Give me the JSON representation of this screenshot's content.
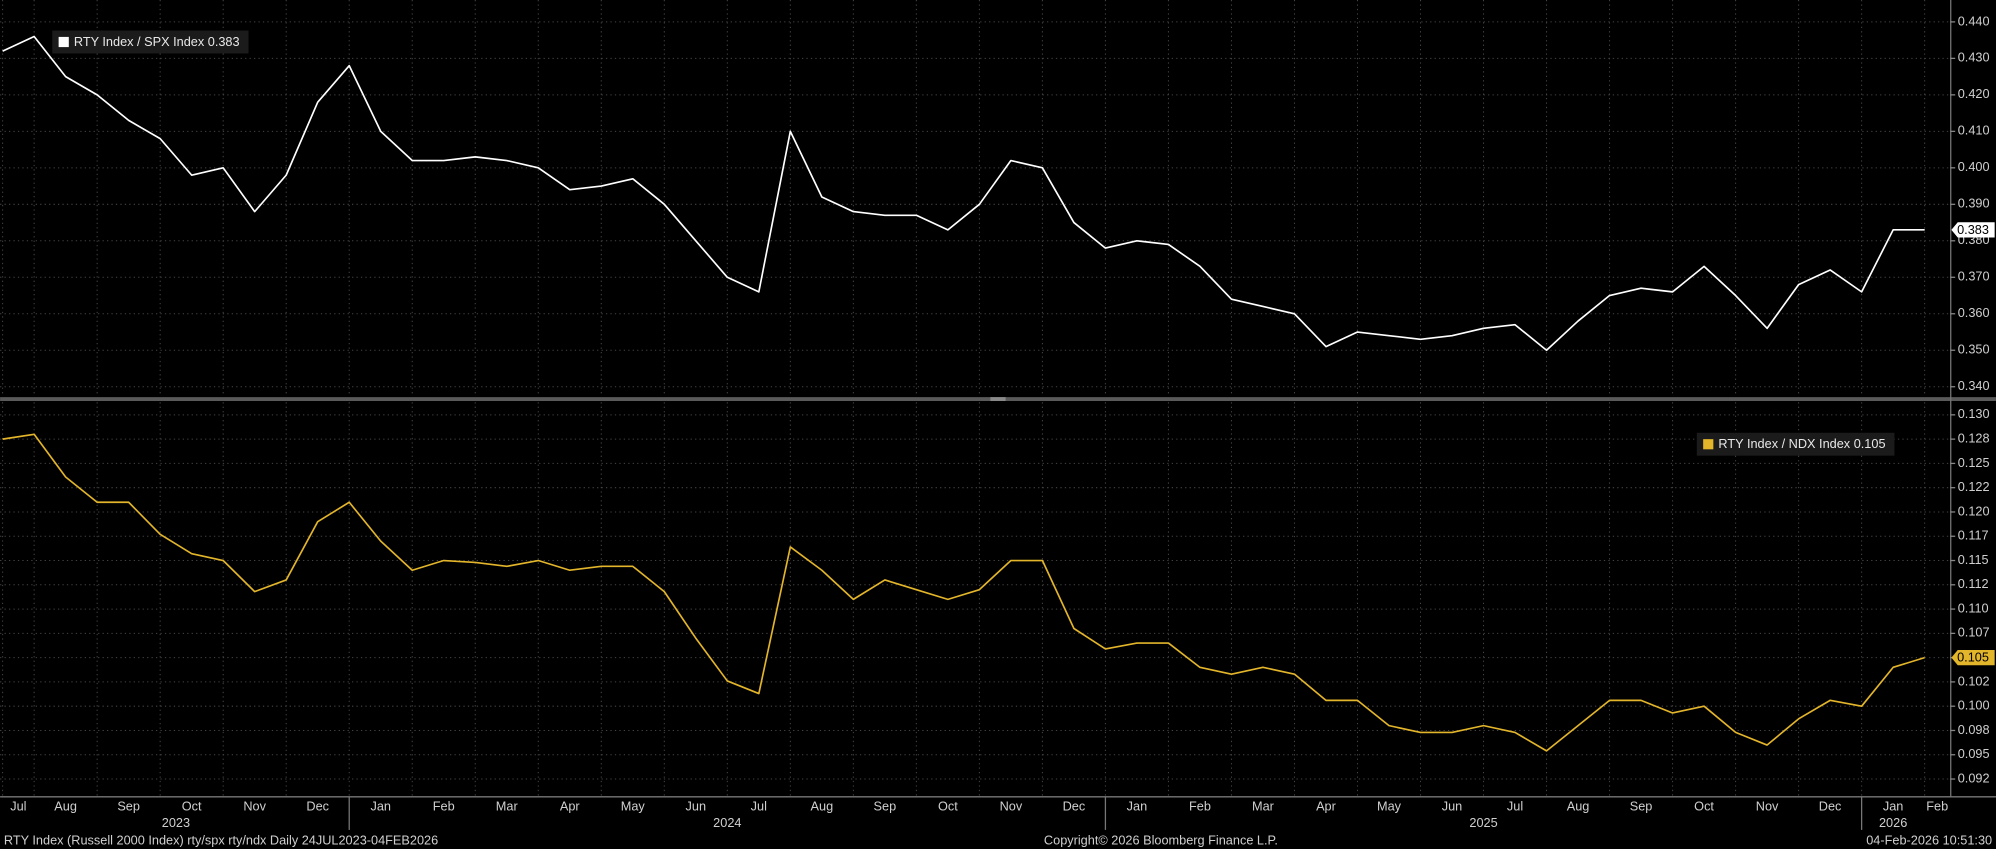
{
  "chart_data": {
    "type": "line",
    "categories": [
      "Jul",
      "Aug",
      null,
      "Sep",
      null,
      "Oct",
      null,
      "Nov",
      null,
      "Dec",
      null,
      "Jan",
      null,
      "Feb",
      null,
      "Mar",
      null,
      "Apr",
      null,
      "May",
      null,
      "Jun",
      null,
      "Jul",
      null,
      "Aug",
      null,
      "Sep",
      null,
      "Oct",
      null,
      "Nov",
      null,
      "Dec",
      null,
      "Jan",
      null,
      "Feb",
      null,
      "Mar",
      null,
      "Apr",
      null,
      "May",
      null,
      "Jun",
      null,
      "Jul",
      null,
      "Aug",
      null,
      "Sep",
      null,
      "Oct",
      null,
      "Nov",
      null,
      "Dec",
      null,
      "Jan",
      null,
      "Feb"
    ],
    "years": [
      "2023",
      "2024",
      "2025",
      "2026"
    ],
    "grid": true,
    "series": [
      {
        "name": "RTY Index / SPX Index 0.383",
        "color": "#ffffff",
        "ylim": [
          0.3375,
          0.446
        ],
        "yticks": [
          {
            "value": 0.34,
            "label": "0.340"
          },
          {
            "value": 0.35,
            "label": "0.350"
          },
          {
            "value": 0.36,
            "label": "0.360"
          },
          {
            "value": 0.37,
            "label": "0.370"
          },
          {
            "value": 0.38,
            "label": "0.380"
          },
          {
            "value": 0.39,
            "label": "0.390"
          },
          {
            "value": 0.4,
            "label": "0.400"
          },
          {
            "value": 0.41,
            "label": "0.410"
          },
          {
            "value": 0.42,
            "label": "0.420"
          },
          {
            "value": 0.43,
            "label": "0.430"
          },
          {
            "value": 0.44,
            "label": "0.440"
          }
        ],
        "values": [
          0.432,
          0.436,
          0.425,
          0.42,
          0.413,
          0.408,
          0.398,
          0.4,
          0.388,
          0.398,
          0.418,
          0.428,
          0.41,
          0.402,
          0.402,
          0.403,
          0.402,
          0.4,
          0.394,
          0.395,
          0.397,
          0.39,
          0.38,
          0.37,
          0.366,
          0.41,
          0.392,
          0.388,
          0.387,
          0.387,
          0.383,
          0.39,
          0.402,
          0.4,
          0.385,
          0.378,
          0.38,
          0.379,
          0.373,
          0.364,
          0.362,
          0.36,
          0.351,
          0.355,
          0.354,
          0.353,
          0.354,
          0.356,
          0.357,
          0.35,
          0.358,
          0.365,
          0.367,
          0.366,
          0.373,
          0.365,
          0.356,
          0.368,
          0.372,
          0.366,
          0.383,
          0.383
        ]
      },
      {
        "name": "RTY Index / NDX Index 0.105",
        "color": "#e3b52b",
        "ylim": [
          0.0908,
          0.1313
        ],
        "yticks": [
          {
            "value": 0.0925,
            "label": "0.092"
          },
          {
            "value": 0.095,
            "label": "0.095"
          },
          {
            "value": 0.0975,
            "label": "0.098"
          },
          {
            "value": 0.1,
            "label": "0.100"
          },
          {
            "value": 0.1025,
            "label": "0.102"
          },
          {
            "value": 0.105,
            "label": "0.105"
          },
          {
            "value": 0.1075,
            "label": "0.107"
          },
          {
            "value": 0.11,
            "label": "0.110"
          },
          {
            "value": 0.1125,
            "label": "0.112"
          },
          {
            "value": 0.115,
            "label": "0.115"
          },
          {
            "value": 0.1175,
            "label": "0.117"
          },
          {
            "value": 0.12,
            "label": "0.120"
          },
          {
            "value": 0.1225,
            "label": "0.122"
          },
          {
            "value": 0.125,
            "label": "0.125"
          },
          {
            "value": 0.1275,
            "label": "0.128"
          },
          {
            "value": 0.13,
            "label": "0.130"
          }
        ],
        "values": [
          0.1275,
          0.128,
          0.1236,
          0.121,
          0.121,
          0.1177,
          0.1157,
          0.115,
          0.1118,
          0.113,
          0.119,
          0.121,
          0.117,
          0.114,
          0.115,
          0.1148,
          0.1144,
          0.115,
          0.114,
          0.1144,
          0.1144,
          0.1118,
          0.107,
          0.1026,
          0.1013,
          0.1164,
          0.114,
          0.111,
          0.113,
          0.112,
          0.111,
          0.112,
          0.115,
          0.115,
          0.108,
          0.1059,
          0.1065,
          0.1065,
          0.104,
          0.1033,
          0.104,
          0.1033,
          0.1006,
          0.1006,
          0.098,
          0.0973,
          0.0973,
          0.098,
          0.0973,
          0.0954,
          0.098,
          0.1006,
          0.1006,
          0.0993,
          0.1,
          0.0973,
          0.096,
          0.0987,
          0.1006,
          0.1,
          0.104,
          0.105
        ]
      }
    ],
    "footer": {
      "left": "RTY Index (Russell 2000 Index) rty/spx rty/ndx Daily 24JUL2023-04FEB2026",
      "center": "Copyright© 2026 Bloomberg Finance L.P.",
      "right": "04-Feb-2026 10:51:30"
    }
  }
}
